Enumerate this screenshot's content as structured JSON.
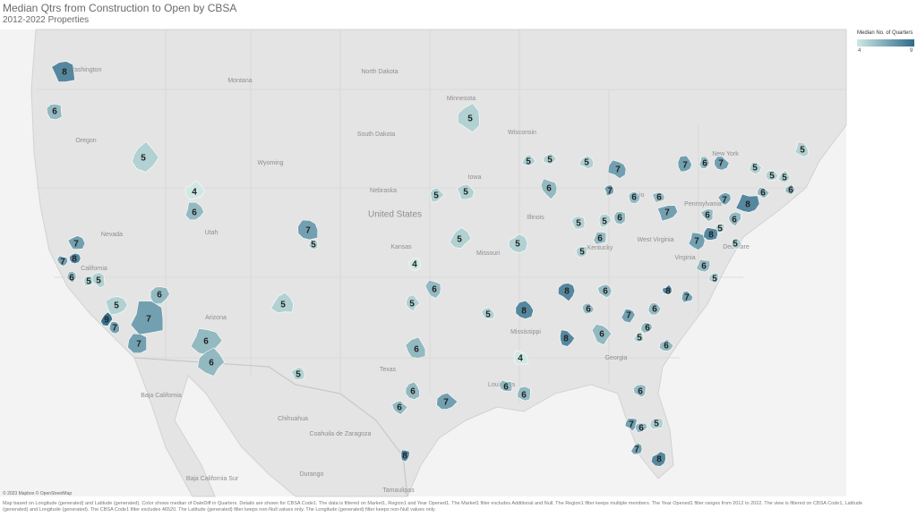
{
  "header": {
    "title": "Median Qtrs from Construction to Open by CBSA",
    "subtitle": "2012-2022 Properties"
  },
  "legend": {
    "title": "Median No. of Quarters",
    "min": 4,
    "max": 9,
    "colors": [
      "#cfe9e4",
      "#2e6b8a"
    ]
  },
  "map_labels": [
    "Washington",
    "Montana",
    "North Dakota",
    "Minnesota",
    "South Dakota",
    "Wisconsin",
    "Oregon",
    "Wyoming",
    "Iowa",
    "Nebraska",
    "United States",
    "Nevada",
    "Utah",
    "Illinois",
    "Ohio",
    "Pennsylvania",
    "New York",
    "Kansas",
    "Missouri",
    "Kentucky",
    "West Virginia",
    "Virginia",
    "Delaware",
    "California",
    "Arizona",
    "Mississippi",
    "Georgia",
    "Texas",
    "Louisiana",
    "Baja California",
    "Chihuahua",
    "Coahuila de Zaragoza",
    "Durango",
    "Baja California Sur",
    "Tamaulipas"
  ],
  "regions": [
    8,
    6,
    5,
    4,
    6,
    7,
    5,
    5,
    5,
    5,
    5,
    7,
    6,
    7,
    5,
    5,
    6,
    6,
    7,
    6,
    7,
    5,
    5,
    5,
    6,
    5,
    6,
    8,
    7,
    6,
    6,
    5,
    7,
    5,
    5,
    6,
    6,
    5,
    5,
    5,
    7,
    8,
    6,
    5,
    5,
    7,
    8,
    7,
    6,
    5,
    5,
    5,
    6,
    9,
    7,
    7,
    7,
    6,
    6,
    5,
    5,
    4,
    6,
    5,
    5,
    8,
    6,
    8,
    8,
    7,
    6,
    6,
    7,
    6,
    5,
    6,
    8,
    6,
    4,
    6,
    6,
    6,
    7,
    6,
    6,
    6,
    7,
    6,
    5,
    7,
    8,
    8
  ],
  "attribution": "© 2023 Mapbox © OpenStreetMap",
  "footnote": "Map based on Longitude (generated) and Latitude (generated). Color shows median of DateDiff in Quarters. Details are shown for CBSA Code1. The data is filtered on Market1, Region1 and Year Opened1. The Market1 filter excludes Additional and Null. The Region1 filter keeps multiple members. The Year Opened1 filter ranges from 2012 to 2022. The view is filtered on CBSA Code1, Latitude (generated) and Longitude (generated). The CBSA Code1 filter excludes 46520. The Latitude (generated) filter keeps non-Null values only. The Longitude (generated) filter keeps non-Null values only."
}
